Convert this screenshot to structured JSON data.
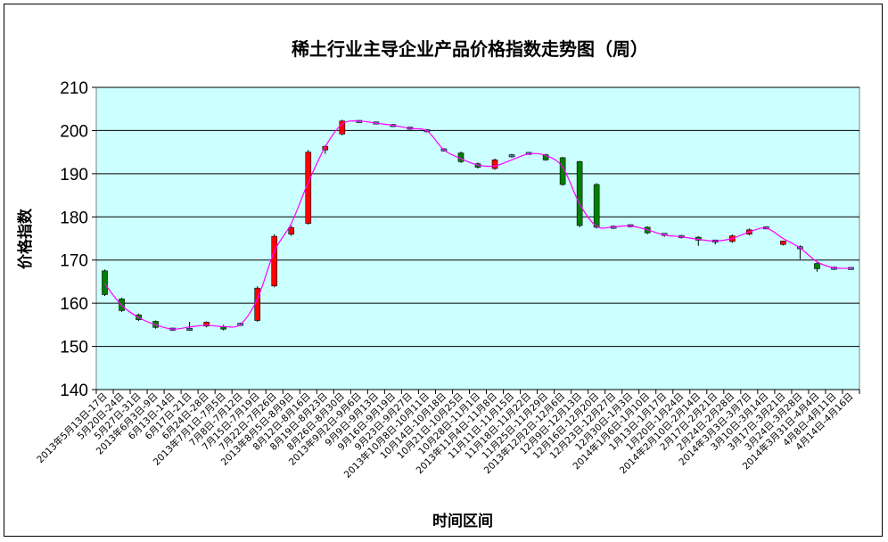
{
  "chart_data": {
    "type": "candlestick",
    "title": "稀土行业主导企业产品价格指数走势图（周）",
    "xlabel": "时间区间",
    "ylabel": "价格指数",
    "ylim": [
      140,
      210
    ],
    "yticks": [
      140,
      150,
      160,
      170,
      180,
      190,
      200,
      210
    ],
    "grid": true,
    "colors": {
      "plot_bg": "#CCFFFF",
      "up": "#FF0000",
      "down": "#008000",
      "line": "#FF00FF",
      "neutral": "#4F81BD"
    },
    "categories": [
      "2013年5月13日-17日",
      "5月20日-24日",
      "5月27日-31日",
      "2013年6月3日-9日",
      "6月13日-14日",
      "6月17日-21日",
      "6月24日-28日",
      "2013年7月1日-7月5日",
      "7月8日-7月12日",
      "7月15日-7月19日",
      "7月22日-7月26日",
      "2013年8月5日-8月9日",
      "8月12日-8月16日",
      "8月19日-8月23日",
      "8月26日-8月30日",
      "2013年9月2日-9月6日",
      "9月9日-9月13日",
      "9月16日-9月19日",
      "9月23日-9月27日",
      "2013年10月8日-10月11日",
      "10月14日-10月18日",
      "10月21日-10月25日",
      "10月28日-11月1日",
      "2013年11月4日-11月8日",
      "11月11日-11月15日",
      "11月18日-11月22日",
      "11月25日-11月29日",
      "2013年12月2日-12月6日",
      "12月9日-12月13日",
      "12月16日-12月20日",
      "12月23日-12月27日",
      "12月30日-1月3日",
      "2014年1月6日-1月10日",
      "1月13日-1月17日",
      "1月20日-1月24日",
      "2014年2月10日-2月14日",
      "2月17日-2月21日",
      "2月24日-2月28日",
      "2014年3月3日-3月7日",
      "3月10日-3月14日",
      "3月17日-3月21日",
      "3月24日-3月28日",
      "2014年3月31日-4月4日",
      "4月8日-4月11日",
      "4月14日-4月16日"
    ],
    "series": [
      {
        "open": [
          167.5,
          161.0,
          157.3,
          155.8,
          154.0,
          154.0,
          154.7,
          154.6,
          155.0,
          156.0,
          164.0,
          176.0,
          178.5,
          195.5,
          199.2,
          202.0,
          201.7,
          201.3,
          200.7,
          200.0,
          195.6,
          194.8,
          192.3,
          191.2,
          194.3,
          194.6,
          194.4,
          193.7,
          192.8,
          187.5,
          177.7,
          178.0,
          177.6,
          176.0,
          175.6,
          175.3,
          174.3,
          174.3,
          176.0,
          177.5,
          173.6,
          173.0,
          169.2,
          168.2,
          168.0
        ],
        "close": [
          162.0,
          158.3,
          156.2,
          154.4,
          154.0,
          153.9,
          155.6,
          154.0,
          155.2,
          163.5,
          175.5,
          177.5,
          195.0,
          196.3,
          202.2,
          202.2,
          201.8,
          201.0,
          200.4,
          199.9,
          195.4,
          192.8,
          191.5,
          193.2,
          194.0,
          194.8,
          193.2,
          187.5,
          178.0,
          177.6,
          177.5,
          177.9,
          176.3,
          175.9,
          175.3,
          174.6,
          174.5,
          175.6,
          177.0,
          177.4,
          174.4,
          172.7,
          168.0,
          168.0,
          168.1
        ],
        "high": [
          167.8,
          161.3,
          157.6,
          156.0,
          154.3,
          155.7,
          155.8,
          155.0,
          155.5,
          163.9,
          176.0,
          178.0,
          195.5,
          196.6,
          202.5,
          202.4,
          202.0,
          201.5,
          200.8,
          200.3,
          195.9,
          195.1,
          192.6,
          193.5,
          194.6,
          195.0,
          194.6,
          193.9,
          193.0,
          187.8,
          178.0,
          178.2,
          177.8,
          176.2,
          175.8,
          175.5,
          174.6,
          175.9,
          177.3,
          177.7,
          174.5,
          173.4,
          169.5,
          168.5,
          168.3
        ],
        "low": [
          161.7,
          158.0,
          155.9,
          154.1,
          153.6,
          153.6,
          154.4,
          153.7,
          154.8,
          155.7,
          163.7,
          175.6,
          178.2,
          194.6,
          198.9,
          201.8,
          201.5,
          200.8,
          200.2,
          199.6,
          195.2,
          192.5,
          191.2,
          190.9,
          193.7,
          194.4,
          193.0,
          187.2,
          177.6,
          177.3,
          177.2,
          177.6,
          176.0,
          175.4,
          175.0,
          173.3,
          173.6,
          174.0,
          175.7,
          177.2,
          173.4,
          170.2,
          167.3,
          167.7,
          167.8
        ],
        "trend": [
          164.5,
          159.5,
          156.7,
          155.0,
          154.0,
          154.5,
          154.9,
          154.6,
          155.1,
          161.0,
          172.0,
          178.5,
          188.0,
          196.2,
          201.5,
          202.2,
          201.7,
          201.2,
          200.5,
          199.9,
          195.5,
          193.5,
          192.0,
          191.8,
          193.2,
          194.6,
          194.2,
          191.5,
          183.0,
          177.8,
          177.7,
          177.9,
          177.0,
          175.8,
          175.4,
          174.8,
          174.4,
          175.0,
          176.5,
          177.4,
          175.0,
          172.8,
          169.6,
          168.2,
          168.1
        ]
      }
    ]
  }
}
